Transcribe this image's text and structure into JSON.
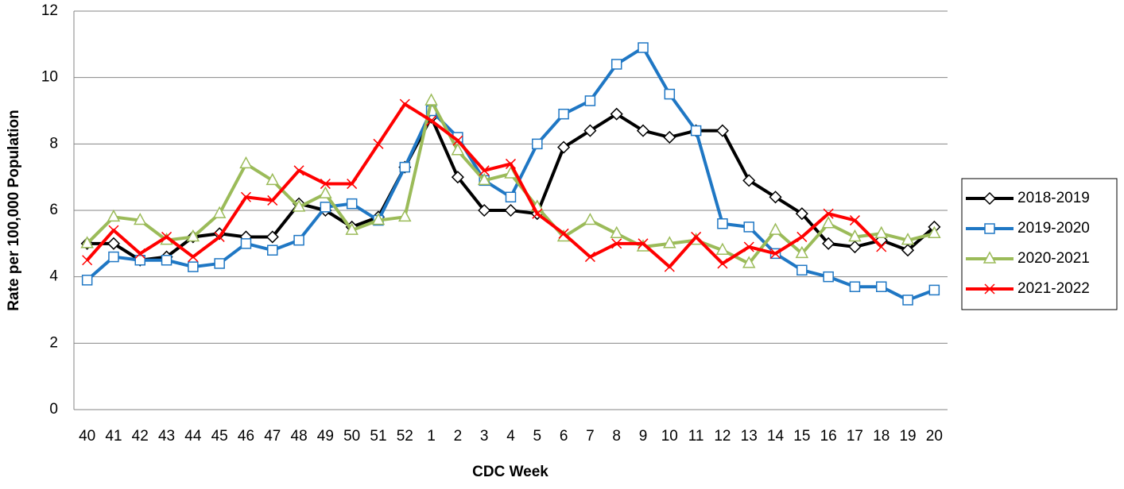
{
  "chart_data": {
    "type": "line",
    "x_label": "CDC Week",
    "y_label": "Rate per 100,000 Population",
    "categories": [
      "40",
      "41",
      "42",
      "43",
      "44",
      "45",
      "46",
      "47",
      "48",
      "49",
      "50",
      "51",
      "52",
      "1",
      "2",
      "3",
      "4",
      "5",
      "6",
      "7",
      "8",
      "9",
      "10",
      "11",
      "12",
      "13",
      "14",
      "15",
      "16",
      "17",
      "18",
      "19",
      "20"
    ],
    "ylim": [
      0,
      12
    ],
    "yticks": [
      0,
      2,
      4,
      6,
      8,
      10,
      12
    ],
    "grid": true,
    "legend": "right",
    "series": [
      {
        "name": "2018-2019",
        "color": "#000000",
        "marker": "diamond",
        "values": [
          5.0,
          5.0,
          4.5,
          4.6,
          5.2,
          5.3,
          5.2,
          5.2,
          6.2,
          6.0,
          5.5,
          5.8,
          7.3,
          8.8,
          7.0,
          6.0,
          6.0,
          5.9,
          7.9,
          8.4,
          8.9,
          8.4,
          8.2,
          8.4,
          8.4,
          6.9,
          6.4,
          5.9,
          5.0,
          4.9,
          5.1,
          4.8,
          5.5
        ]
      },
      {
        "name": "2019-2020",
        "color": "#1f77c4",
        "marker": "square",
        "values": [
          3.9,
          4.6,
          4.5,
          4.5,
          4.3,
          4.4,
          5.0,
          4.8,
          5.1,
          6.1,
          6.2,
          5.7,
          7.3,
          9.0,
          8.2,
          6.9,
          6.4,
          8.0,
          8.9,
          9.3,
          10.4,
          10.9,
          9.5,
          8.4,
          5.6,
          5.5,
          4.7,
          4.2,
          4.0,
          3.7,
          3.7,
          3.3,
          3.6
        ]
      },
      {
        "name": "2020-2021",
        "color": "#9bbb59",
        "marker": "triangle",
        "values": [
          5.0,
          5.8,
          5.7,
          5.1,
          5.2,
          5.9,
          7.4,
          6.9,
          6.1,
          6.5,
          5.4,
          5.7,
          5.8,
          9.3,
          7.8,
          6.9,
          7.1,
          6.1,
          5.2,
          5.7,
          5.3,
          4.9,
          5.0,
          5.1,
          4.8,
          4.4,
          5.4,
          4.7,
          5.6,
          5.2,
          5.3,
          5.1,
          5.3
        ]
      },
      {
        "name": "2021-2022",
        "color": "#ff0000",
        "marker": "x",
        "values": [
          4.5,
          5.4,
          4.7,
          5.2,
          4.6,
          5.2,
          6.4,
          6.3,
          7.2,
          6.8,
          6.8,
          8.0,
          9.2,
          8.7,
          8.1,
          7.2,
          7.4,
          5.9,
          5.3,
          4.6,
          5.0,
          5.0,
          4.3,
          5.2,
          4.4,
          4.9,
          4.7,
          5.2,
          5.9,
          5.7,
          4.9,
          null,
          null
        ]
      }
    ]
  }
}
